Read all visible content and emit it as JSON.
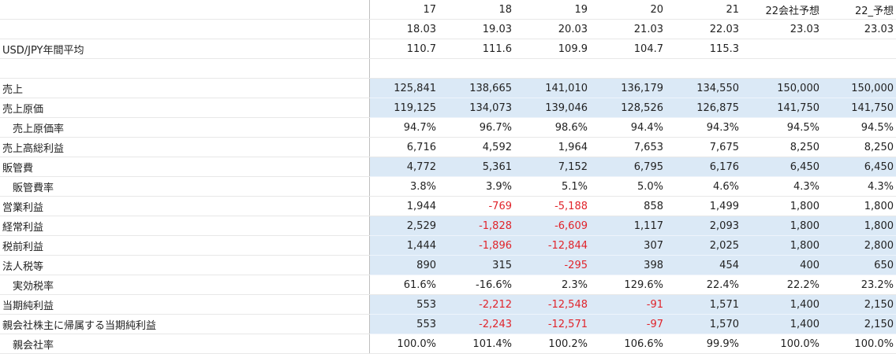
{
  "header_rows": [
    [
      "17",
      "18",
      "19",
      "20",
      "21",
      "22会社予想",
      "22_予想"
    ],
    [
      "18.03",
      "19.03",
      "20.03",
      "21.03",
      "22.03",
      "23.03",
      "23.03"
    ]
  ],
  "rows": [
    {
      "label": "USD/JPY年間平均",
      "indent": false,
      "highlight": false,
      "values": [
        "110.7",
        "111.6",
        "109.9",
        "104.7",
        "115.3",
        "",
        ""
      ]
    },
    {
      "label": "",
      "indent": false,
      "highlight": false,
      "values": [
        "",
        "",
        "",
        "",
        "",
        "",
        ""
      ]
    },
    {
      "label": "売上",
      "indent": false,
      "highlight": true,
      "values": [
        "125,841",
        "138,665",
        "141,010",
        "136,179",
        "134,550",
        "150,000",
        "150,000"
      ]
    },
    {
      "label": "売上原価",
      "indent": false,
      "highlight": true,
      "values": [
        "119,125",
        "134,073",
        "139,046",
        "128,526",
        "126,875",
        "141,750",
        "141,750"
      ]
    },
    {
      "label": "売上原価率",
      "indent": true,
      "highlight": false,
      "values": [
        "94.7%",
        "96.7%",
        "98.6%",
        "94.4%",
        "94.3%",
        "94.5%",
        "94.5%"
      ]
    },
    {
      "label": "売上高総利益",
      "indent": false,
      "highlight": false,
      "values": [
        "6,716",
        "4,592",
        "1,964",
        "7,653",
        "7,675",
        "8,250",
        "8,250"
      ]
    },
    {
      "label": "販管費",
      "indent": false,
      "highlight": true,
      "values": [
        "4,772",
        "5,361",
        "7,152",
        "6,795",
        "6,176",
        "6,450",
        "6,450"
      ]
    },
    {
      "label": "販管費率",
      "indent": true,
      "highlight": false,
      "values": [
        "3.8%",
        "3.9%",
        "5.1%",
        "5.0%",
        "4.6%",
        "4.3%",
        "4.3%"
      ]
    },
    {
      "label": "営業利益",
      "indent": false,
      "highlight": false,
      "values": [
        "1,944",
        "-769",
        "-5,188",
        "858",
        "1,499",
        "1,800",
        "1,800"
      ]
    },
    {
      "label": "経常利益",
      "indent": false,
      "highlight": true,
      "values": [
        "2,529",
        "-1,828",
        "-6,609",
        "1,117",
        "2,093",
        "1,800",
        "1,800"
      ]
    },
    {
      "label": "税前利益",
      "indent": false,
      "highlight": true,
      "values": [
        "1,444",
        "-1,896",
        "-12,844",
        "307",
        "2,025",
        "1,800",
        "2,800"
      ]
    },
    {
      "label": "法人税等",
      "indent": false,
      "highlight": true,
      "values": [
        "890",
        "315",
        "-295",
        "398",
        "454",
        "400",
        "650"
      ]
    },
    {
      "label": "実効税率",
      "indent": true,
      "highlight": false,
      "values": [
        "61.6%",
        "-16.6%",
        "2.3%",
        "129.6%",
        "22.4%",
        "22.2%",
        "23.2%"
      ]
    },
    {
      "label": "当期純利益",
      "indent": false,
      "highlight": true,
      "values": [
        "553",
        "-2,212",
        "-12,548",
        "-91",
        "1,571",
        "1,400",
        "2,150"
      ]
    },
    {
      "label": "親会社株主に帰属する当期純利益",
      "indent": false,
      "highlight": true,
      "values": [
        "553",
        "-2,243",
        "-12,571",
        "-97",
        "1,570",
        "1,400",
        "2,150"
      ]
    },
    {
      "label": "親会社率",
      "indent": true,
      "highlight": false,
      "values": [
        "100.0%",
        "101.4%",
        "100.2%",
        "106.6%",
        "99.9%",
        "100.0%",
        "100.0%"
      ]
    }
  ],
  "colors": {
    "highlight": "#dbe9f6",
    "negative": "#e0242b",
    "grid": "#e8e8e8",
    "divider": "#bfbfbf"
  }
}
